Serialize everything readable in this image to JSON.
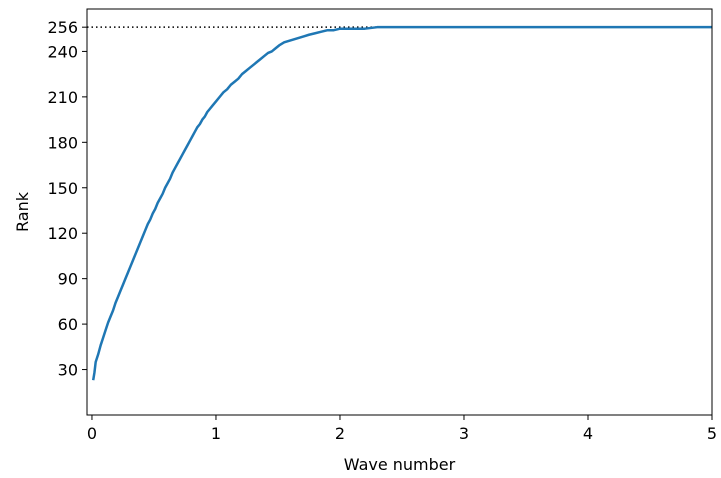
{
  "chart_data": {
    "type": "line",
    "xlabel": "Wave number",
    "ylabel": "Rank",
    "xlim": [
      -0.04,
      5.0
    ],
    "ylim": [
      0,
      268
    ],
    "xticks": [
      0,
      1,
      2,
      3,
      4,
      5
    ],
    "yticks": [
      30,
      60,
      90,
      120,
      150,
      180,
      210,
      240,
      256
    ],
    "grid": false,
    "reference_line": {
      "y": 256,
      "style": "dotted",
      "color": "#000000"
    },
    "series": [
      {
        "color": "#1f77b4",
        "x": [
          0.01,
          0.02,
          0.03,
          0.05,
          0.07,
          0.09,
          0.11,
          0.13,
          0.15,
          0.17,
          0.19,
          0.21,
          0.23,
          0.25,
          0.27,
          0.29,
          0.31,
          0.33,
          0.35,
          0.37,
          0.39,
          0.41,
          0.43,
          0.45,
          0.47,
          0.49,
          0.51,
          0.53,
          0.55,
          0.57,
          0.59,
          0.61,
          0.63,
          0.65,
          0.67,
          0.69,
          0.71,
          0.73,
          0.75,
          0.77,
          0.79,
          0.81,
          0.83,
          0.85,
          0.87,
          0.89,
          0.91,
          0.93,
          0.95,
          0.97,
          1.0,
          1.03,
          1.06,
          1.09,
          1.12,
          1.15,
          1.18,
          1.21,
          1.24,
          1.27,
          1.3,
          1.33,
          1.36,
          1.39,
          1.42,
          1.45,
          1.48,
          1.51,
          1.55,
          1.59,
          1.63,
          1.67,
          1.71,
          1.75,
          1.8,
          1.85,
          1.9,
          1.95,
          2.0,
          2.1,
          2.2,
          2.3,
          2.6,
          3.0,
          3.5,
          4.0,
          4.5,
          5.0
        ],
        "y": [
          23,
          28,
          35,
          40,
          46,
          51,
          56,
          61,
          65,
          69,
          74,
          78,
          82,
          86,
          90,
          94,
          98,
          102,
          106,
          110,
          114,
          118,
          122,
          126,
          129,
          133,
          136,
          140,
          143,
          146,
          150,
          153,
          156,
          160,
          163,
          166,
          169,
          172,
          175,
          178,
          181,
          184,
          187,
          190,
          192,
          195,
          197,
          200,
          202,
          204,
          207,
          210,
          213,
          215,
          218,
          220,
          222,
          225,
          227,
          229,
          231,
          233,
          235,
          237,
          239,
          240,
          242,
          244,
          246,
          247,
          248,
          249,
          250,
          251,
          252,
          253,
          254,
          254,
          255,
          255,
          255,
          256,
          256,
          256,
          256,
          256,
          256,
          256
        ]
      }
    ]
  }
}
